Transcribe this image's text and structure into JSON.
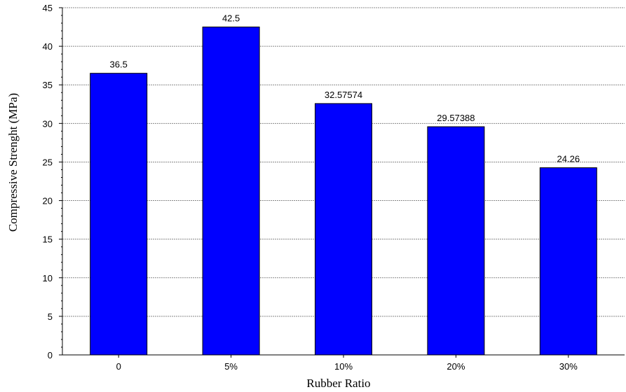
{
  "chart_data": {
    "type": "bar",
    "title": "",
    "xlabel": "Rubber Ratio",
    "ylabel": "Compressive Strenght (MPa)",
    "categories": [
      "0",
      "5%",
      "10%",
      "20%",
      "30%"
    ],
    "values": [
      36.5,
      42.5,
      32.57574,
      29.57388,
      24.26
    ],
    "value_labels": [
      "36.5",
      "42.5",
      "32.57574",
      "29.57388",
      "24.26"
    ],
    "ylim": [
      0,
      45
    ],
    "yticks": [
      0,
      5,
      10,
      15,
      20,
      25,
      30,
      35,
      40,
      45
    ],
    "grid": "horizontal",
    "legend": "none",
    "colors": {
      "bar_fill": "#0000ff",
      "bar_stroke": "#000000",
      "grid": "#888888",
      "axis": "#000000"
    }
  }
}
